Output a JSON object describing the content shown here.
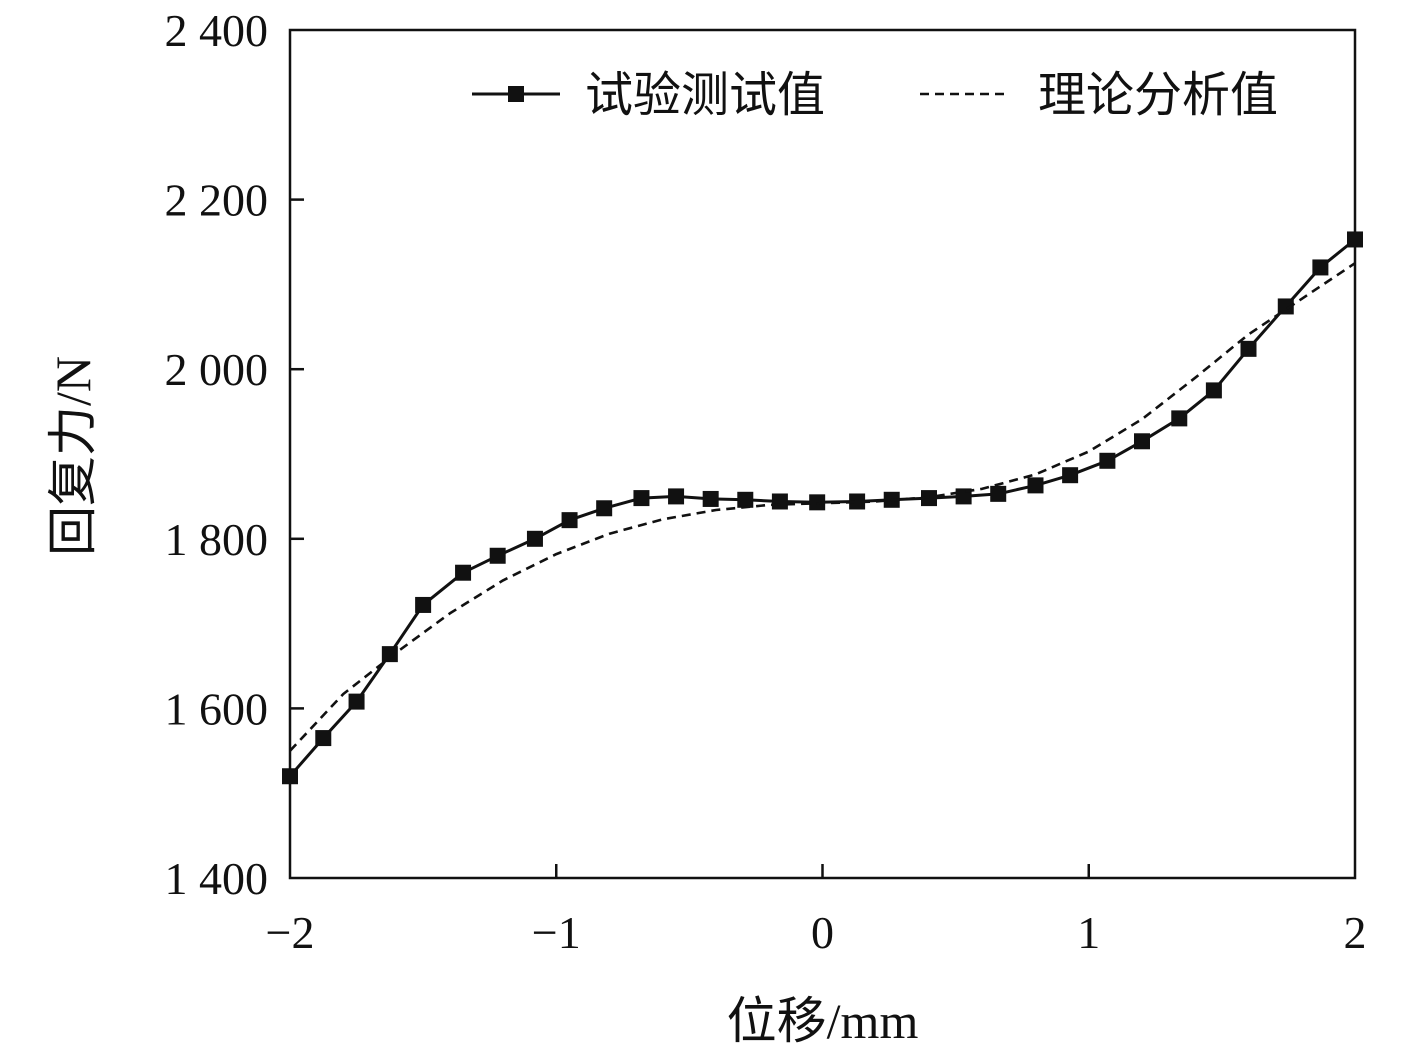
{
  "chart_data": {
    "type": "line",
    "xlabel": "位移/mm",
    "ylabel": "回复力/N",
    "xlim": [
      -2,
      2
    ],
    "ylim": [
      1400,
      2400
    ],
    "x_ticks": [
      -2,
      -1,
      0,
      1,
      2
    ],
    "x_tick_labels": [
      "−2",
      "−1",
      "0",
      "1",
      "2"
    ],
    "y_ticks": [
      1400,
      1600,
      1800,
      2000,
      2200,
      2400
    ],
    "y_tick_labels": [
      "1 400",
      "1 600",
      "1 800",
      "2 000",
      "2 200",
      "2 400"
    ],
    "grid": false,
    "legend_position": "top-right",
    "series": [
      {
        "name": "试验测试值",
        "style": "solid-square-markers",
        "color": "#111111",
        "x": [
          -2.0,
          -1.875,
          -1.75,
          -1.625,
          -1.5,
          -1.35,
          -1.22,
          -1.08,
          -0.95,
          -0.82,
          -0.68,
          -0.55,
          -0.42,
          -0.29,
          -0.16,
          -0.02,
          0.13,
          0.26,
          0.4,
          0.53,
          0.66,
          0.8,
          0.93,
          1.07,
          1.2,
          1.34,
          1.47,
          1.6,
          1.74,
          1.87,
          2.0
        ],
        "y": [
          1520,
          1565,
          1608,
          1664,
          1722,
          1760,
          1780,
          1800,
          1822,
          1836,
          1848,
          1850,
          1847,
          1846,
          1844,
          1843,
          1844,
          1846,
          1848,
          1850,
          1853,
          1863,
          1875,
          1892,
          1915,
          1942,
          1975,
          2024,
          2074,
          2120,
          2153
        ]
      },
      {
        "name": "理论分析值",
        "style": "dashed",
        "color": "#111111",
        "x": [
          -2.0,
          -1.8,
          -1.6,
          -1.4,
          -1.2,
          -1.0,
          -0.8,
          -0.6,
          -0.4,
          -0.2,
          0.0,
          0.2,
          0.4,
          0.6,
          0.8,
          1.0,
          1.2,
          1.4,
          1.6,
          1.8,
          2.0
        ],
        "y": [
          1550,
          1617,
          1666,
          1712,
          1751,
          1782,
          1806,
          1823,
          1834,
          1840,
          1842,
          1844,
          1849,
          1859,
          1876,
          1903,
          1941,
          1990,
          2041,
          2083,
          2125
        ]
      }
    ]
  }
}
